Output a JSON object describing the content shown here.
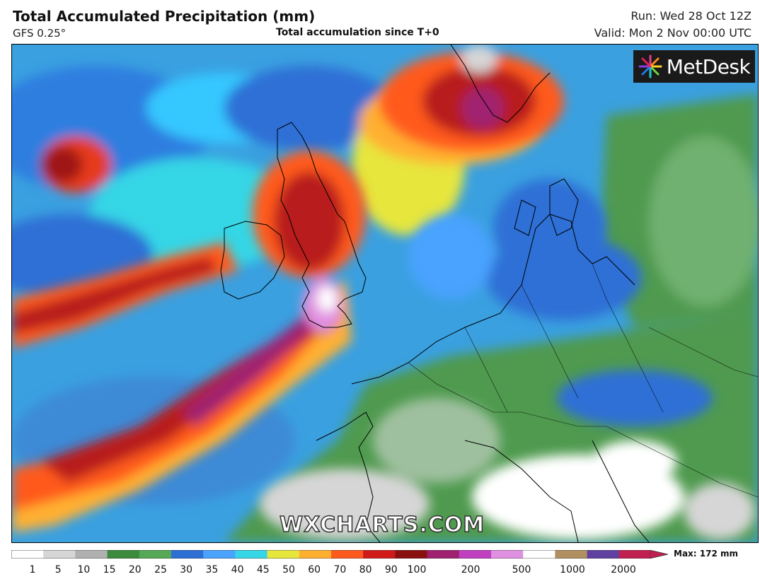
{
  "header": {
    "title": "Total Accumulated Precipitation (mm)",
    "model": "GFS 0.25°",
    "subtitle": "Total accumulation since T+0",
    "run": "Run: Wed 28 Oct 12Z",
    "valid": "Valid: Mon 2 Nov 00:00 UTC"
  },
  "branding": {
    "logo_text": "MetDesk",
    "watermark": "WXCHARTS.COM"
  },
  "legend": {
    "max_label": "Max: 172 mm",
    "ticks": [
      "1",
      "5",
      "10",
      "15",
      "20",
      "25",
      "30",
      "35",
      "40",
      "45",
      "50",
      "60",
      "70",
      "80",
      "90",
      "100",
      "200",
      "500",
      "1000",
      "2000"
    ],
    "colors": [
      "#ffffff",
      "#d6d6d6",
      "#b0b0b0",
      "#3c8a3c",
      "#55a855",
      "#2e6fd6",
      "#4aa3ff",
      "#36d6e6",
      "#e6e63c",
      "#ffb030",
      "#ff5a1e",
      "#d01a1a",
      "#8a1010",
      "#a02070",
      "#c040c0",
      "#e090e0",
      "#ffffff",
      "#b09060",
      "#6040a0",
      "#c02050"
    ]
  },
  "map": {
    "region": "Europe",
    "land_color": "#4f9a4f",
    "sea_color": "#3aa0e0"
  }
}
